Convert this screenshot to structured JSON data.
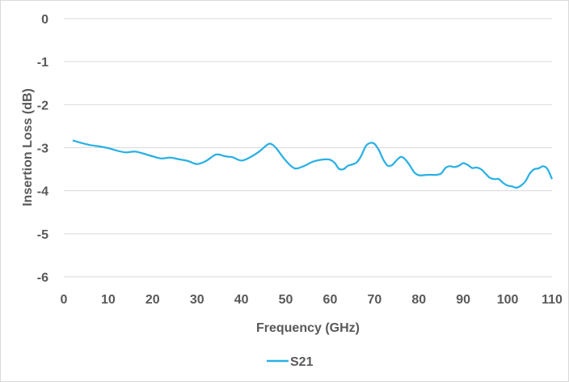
{
  "chart_data": {
    "type": "line",
    "title": "",
    "xlabel": "Frequency (GHz)",
    "ylabel": "Insertion Loss (dB)",
    "xlim": [
      0,
      110
    ],
    "ylim": [
      -6,
      0
    ],
    "xticks": [
      "0",
      "10",
      "20",
      "30",
      "40",
      "50",
      "60",
      "70",
      "80",
      "90",
      "100",
      "110"
    ],
    "yticks": [
      "0",
      "-1",
      "-2",
      "-3",
      "-4",
      "-5",
      "-6"
    ],
    "grid": "horizontal",
    "legend_position": "bottom",
    "series": [
      {
        "name": "S21",
        "color": "#2ab0e4",
        "x": [
          2,
          4,
          6,
          8,
          10,
          12,
          14,
          16,
          18,
          20,
          22,
          24,
          26,
          28,
          30,
          32,
          34,
          35,
          36,
          37,
          38,
          40,
          42,
          44,
          46,
          47,
          48,
          50,
          52,
          54,
          55,
          56,
          57,
          58,
          59,
          60,
          61,
          62,
          63,
          64,
          65,
          66,
          67,
          68,
          69,
          70,
          71,
          72,
          73,
          74,
          75,
          76,
          77,
          78,
          79,
          80,
          81,
          82,
          83,
          84,
          85,
          86,
          87,
          88,
          89,
          90,
          91,
          92,
          93,
          94,
          95,
          96,
          97,
          98,
          99,
          100,
          101,
          102,
          103,
          104,
          105,
          106,
          107,
          108,
          109,
          110
        ],
        "values": [
          -2.83,
          -2.89,
          -2.94,
          -2.97,
          -3.01,
          -3.07,
          -3.11,
          -3.09,
          -3.14,
          -3.2,
          -3.25,
          -3.23,
          -3.27,
          -3.31,
          -3.38,
          -3.31,
          -3.17,
          -3.16,
          -3.19,
          -3.21,
          -3.22,
          -3.3,
          -3.22,
          -3.09,
          -2.92,
          -2.93,
          -3.03,
          -3.3,
          -3.48,
          -3.43,
          -3.38,
          -3.33,
          -3.3,
          -3.28,
          -3.27,
          -3.28,
          -3.35,
          -3.49,
          -3.5,
          -3.42,
          -3.39,
          -3.34,
          -3.19,
          -2.97,
          -2.89,
          -2.91,
          -3.06,
          -3.28,
          -3.42,
          -3.4,
          -3.29,
          -3.21,
          -3.28,
          -3.42,
          -3.58,
          -3.64,
          -3.64,
          -3.63,
          -3.63,
          -3.63,
          -3.6,
          -3.47,
          -3.43,
          -3.45,
          -3.42,
          -3.36,
          -3.4,
          -3.47,
          -3.46,
          -3.5,
          -3.6,
          -3.7,
          -3.73,
          -3.73,
          -3.82,
          -3.88,
          -3.9,
          -3.93,
          -3.88,
          -3.78,
          -3.6,
          -3.5,
          -3.48,
          -3.43,
          -3.5,
          -3.73
        ]
      }
    ]
  }
}
